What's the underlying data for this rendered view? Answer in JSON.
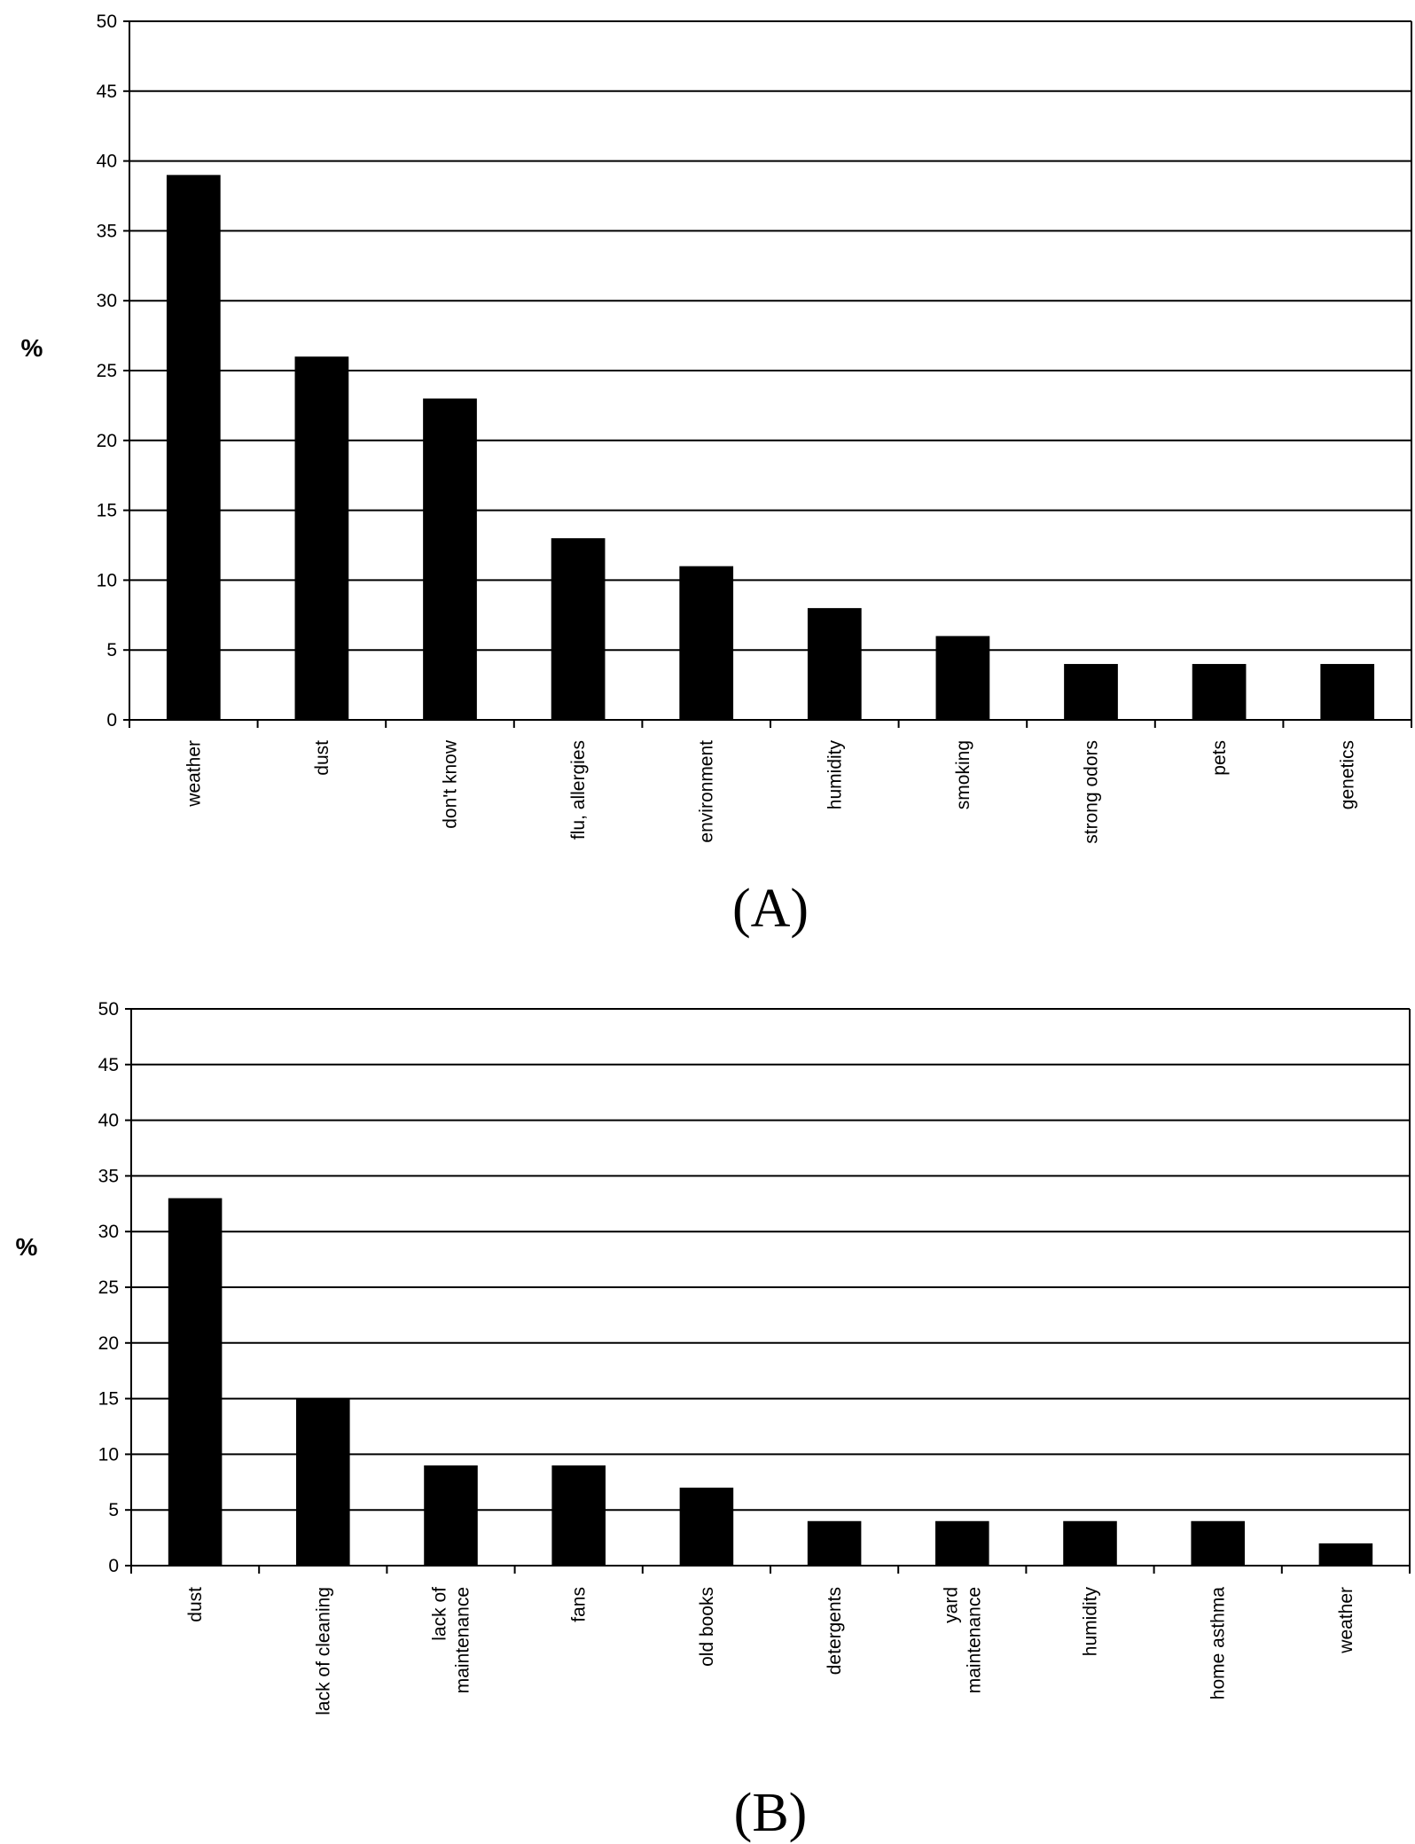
{
  "chart_data": [
    {
      "type": "bar",
      "panel_label": "(A)",
      "ylabel": "%",
      "xlabel": "",
      "ylim": [
        0,
        50
      ],
      "yticks": [
        "0",
        "5",
        "10",
        "15",
        "20",
        "25",
        "30",
        "35",
        "40",
        "45",
        "50"
      ],
      "grid": true,
      "categories": [
        {
          "lines": [
            "weather"
          ]
        },
        {
          "lines": [
            "dust"
          ]
        },
        {
          "lines": [
            "don't know"
          ]
        },
        {
          "lines": [
            "flu, allergies"
          ]
        },
        {
          "lines": [
            "environment"
          ]
        },
        {
          "lines": [
            "humidity"
          ]
        },
        {
          "lines": [
            "smoking"
          ]
        },
        {
          "lines": [
            "strong odors"
          ]
        },
        {
          "lines": [
            "pets"
          ]
        },
        {
          "lines": [
            "genetics"
          ]
        }
      ],
      "values": [
        39,
        26,
        23,
        13,
        11,
        8,
        6,
        4,
        4,
        4
      ]
    },
    {
      "type": "bar",
      "panel_label": "(B)",
      "ylabel": "%",
      "xlabel": "",
      "ylim": [
        0,
        50
      ],
      "yticks": [
        "0",
        "5",
        "10",
        "15",
        "20",
        "25",
        "30",
        "35",
        "40",
        "45",
        "50"
      ],
      "grid": true,
      "categories": [
        {
          "lines": [
            "dust"
          ]
        },
        {
          "lines": [
            "lack of cleaning"
          ]
        },
        {
          "lines": [
            "lack of",
            "maintenance"
          ]
        },
        {
          "lines": [
            "fans"
          ]
        },
        {
          "lines": [
            "old books"
          ]
        },
        {
          "lines": [
            "detergents"
          ]
        },
        {
          "lines": [
            "yard",
            "maintenance"
          ]
        },
        {
          "lines": [
            "humidity"
          ]
        },
        {
          "lines": [
            "home asthma"
          ]
        },
        {
          "lines": [
            "weather"
          ]
        }
      ],
      "values": [
        33,
        15,
        9,
        9,
        7,
        4,
        4,
        4,
        4,
        2
      ]
    }
  ]
}
